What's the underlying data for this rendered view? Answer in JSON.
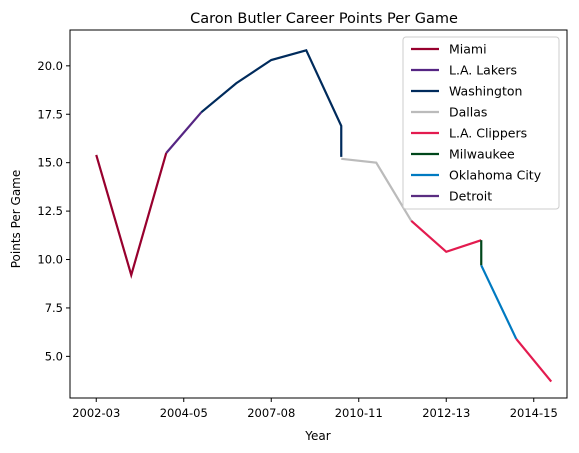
{
  "chart_data": {
    "type": "line",
    "title": "Caron Butler Career Points Per Game",
    "xlabel": "Year",
    "ylabel": "Points Per Game",
    "x_tick_labels": [
      "2002-03",
      "2004-05",
      "2007-08",
      "2010-11",
      "2012-13",
      "2014-15"
    ],
    "x_tick_positions": [
      0,
      2.5,
      5,
      7.5,
      10,
      12.5
    ],
    "xlim": [
      -0.75,
      13.45
    ],
    "ylim": [
      2.85,
      21.85
    ],
    "y_ticks": [
      "5.0",
      "7.5",
      "10.0",
      "12.5",
      "15.0",
      "17.5",
      "20.0"
    ],
    "y_tick_values": [
      5.0,
      7.5,
      10.0,
      12.5,
      15.0,
      17.5,
      20.0
    ],
    "legend_position": "upper right",
    "grid": false,
    "series": [
      {
        "name": "Miami",
        "color": "#98002E",
        "x": [
          0,
          1,
          2
        ],
        "y": [
          15.4,
          9.2,
          15.5
        ]
      },
      {
        "name": "L.A. Lakers",
        "color": "#552583",
        "x": [
          2,
          3
        ],
        "y": [
          15.5,
          17.6
        ]
      },
      {
        "name": "Washington",
        "color": "#002B5C",
        "x": [
          3,
          4,
          5,
          6,
          7,
          7
        ],
        "y": [
          17.6,
          19.1,
          20.3,
          20.8,
          16.9,
          15.3
        ]
      },
      {
        "name": "Dallas",
        "color": "#BBBBBB",
        "x": [
          7,
          8,
          9
        ],
        "y": [
          15.2,
          15.0,
          12.0
        ]
      },
      {
        "name": "L.A. Clippers",
        "color": "#E31B4F",
        "x": [
          9,
          10,
          11
        ],
        "y": [
          12.0,
          10.4,
          11.0
        ]
      },
      {
        "name": "Milwaukee",
        "color": "#00471B",
        "x": [
          11,
          11
        ],
        "y": [
          11.0,
          9.7
        ]
      },
      {
        "name": "Oklahoma City",
        "color": "#007AC1",
        "x": [
          11,
          12
        ],
        "y": [
          9.7,
          5.9
        ]
      },
      {
        "name": "Detroit",
        "color": "#5A2D81",
        "x": [],
        "y": []
      },
      {
        "name": "",
        "color": "#E31B4F",
        "x": [
          12,
          13
        ],
        "y": [
          5.9,
          3.7
        ]
      }
    ]
  }
}
